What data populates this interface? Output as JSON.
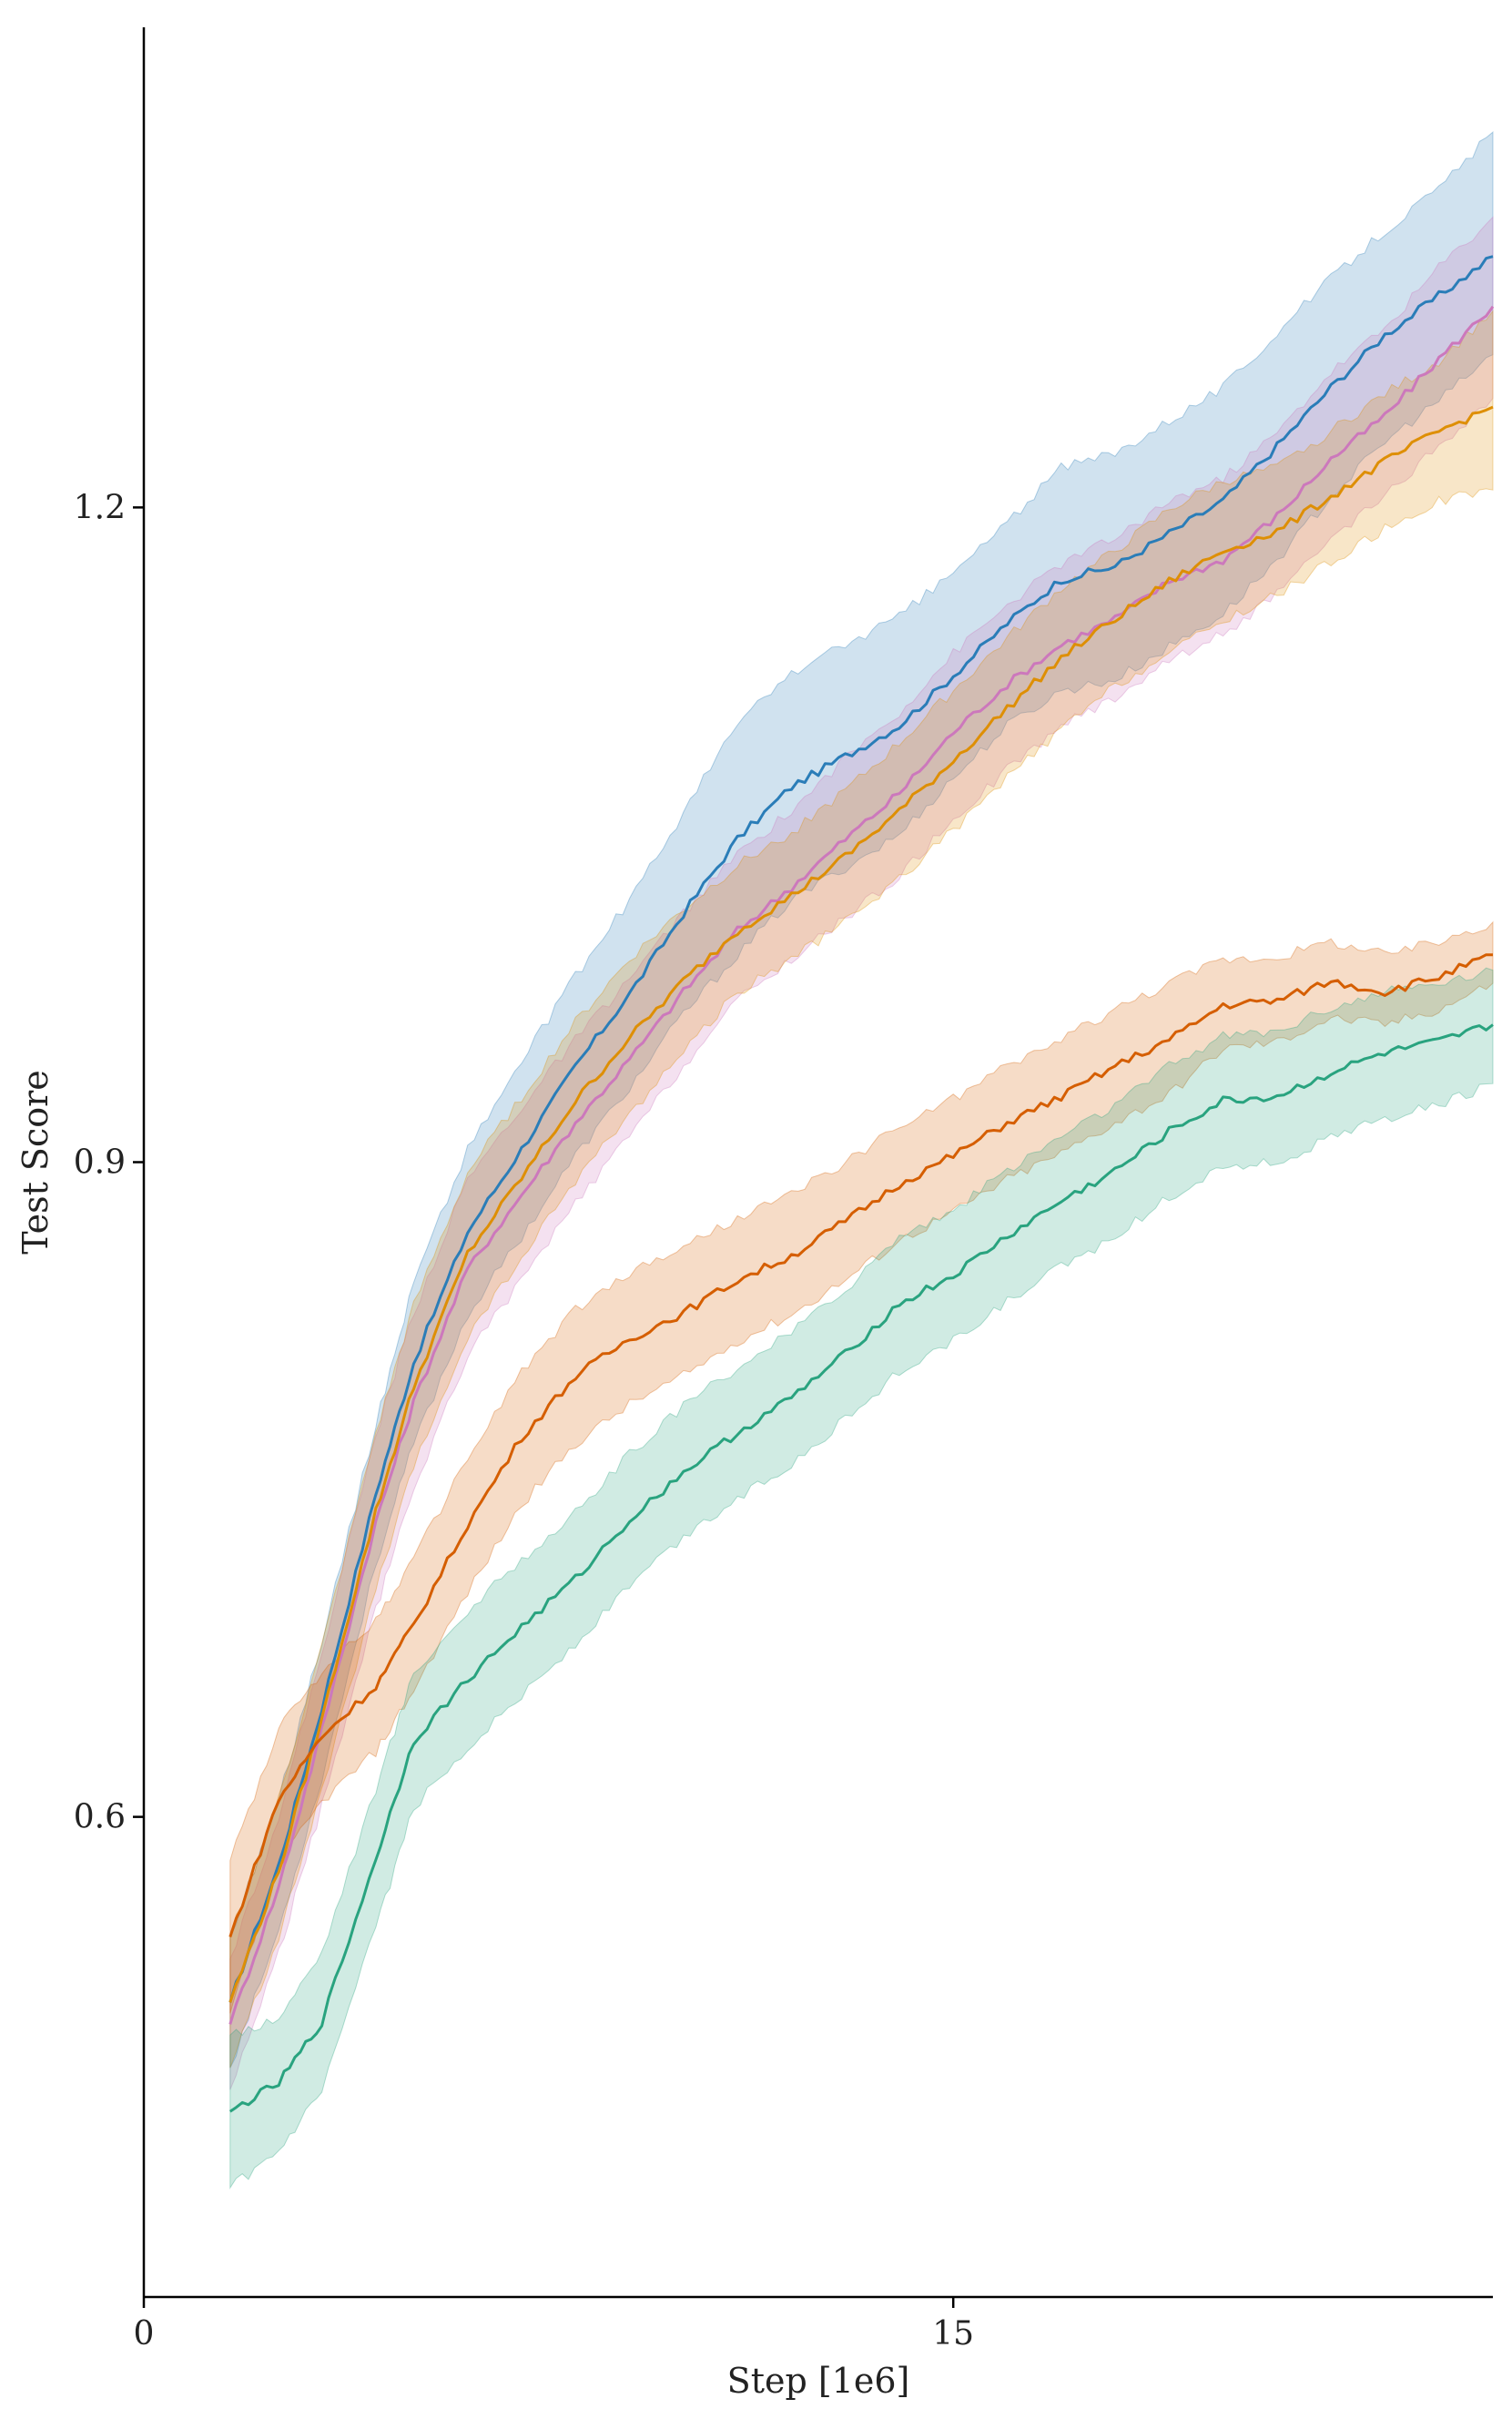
{
  "chart_data": {
    "type": "line",
    "title": "",
    "xlabel": "Step [1e6]",
    "ylabel": "Test Score",
    "xlim": [
      0,
      25
    ],
    "ylim": [
      0.38,
      1.42
    ],
    "xticks": [
      0,
      15
    ],
    "xtick_labels": [
      "0",
      "15"
    ],
    "yticks": [
      0.6,
      0.9,
      1.2
    ],
    "ytick_labels": [
      "0.6",
      "0.9",
      "1.2"
    ],
    "grid": false,
    "legend": "none",
    "x": [
      1.6,
      2.5,
      3.3,
      4.3,
      5.0,
      6.0,
      7.0,
      8.0,
      9.0,
      10.0,
      11.0,
      12.0,
      13.0,
      14.0,
      15.0,
      16.0,
      17.0,
      18.0,
      19.0,
      20.0,
      21.0,
      22.0,
      23.0,
      24.0,
      25.0
    ],
    "series": [
      {
        "color": "#2a7db8",
        "values": [
          0.515,
          0.578,
          0.65,
          0.748,
          0.808,
          0.868,
          0.906,
          0.944,
          0.977,
          1.014,
          1.048,
          1.072,
          1.086,
          1.1,
          1.123,
          1.147,
          1.167,
          1.173,
          1.188,
          1.203,
          1.228,
          1.255,
          1.279,
          1.297,
          1.315
        ],
        "lower": [
          0.485,
          0.548,
          0.618,
          0.716,
          0.771,
          0.83,
          0.866,
          0.903,
          0.934,
          0.968,
          0.995,
          1.02,
          1.035,
          1.05,
          1.076,
          1.1,
          1.116,
          1.121,
          1.136,
          1.151,
          1.176,
          1.205,
          1.23,
          1.249,
          1.27
        ],
        "upper": [
          0.545,
          0.608,
          0.681,
          0.78,
          0.845,
          0.906,
          0.946,
          0.985,
          1.02,
          1.06,
          1.101,
          1.124,
          1.137,
          1.15,
          1.17,
          1.193,
          1.218,
          1.225,
          1.24,
          1.255,
          1.28,
          1.305,
          1.327,
          1.346,
          1.372
        ]
      },
      {
        "color": "#cc78bc",
        "values": [
          0.505,
          0.568,
          0.64,
          0.735,
          0.79,
          0.851,
          0.885,
          0.918,
          0.947,
          0.978,
          1.006,
          1.026,
          1.048,
          1.069,
          1.097,
          1.119,
          1.137,
          1.149,
          1.166,
          1.176,
          1.196,
          1.222,
          1.242,
          1.268,
          1.292
        ],
        "lower": [
          0.475,
          0.538,
          0.605,
          0.695,
          0.75,
          0.812,
          0.846,
          0.881,
          0.912,
          0.944,
          0.974,
          0.993,
          1.012,
          1.031,
          1.057,
          1.08,
          1.1,
          1.113,
          1.13,
          1.142,
          1.16,
          1.185,
          1.205,
          1.228,
          1.25
        ],
        "upper": [
          0.535,
          0.6,
          0.675,
          0.775,
          0.831,
          0.892,
          0.925,
          0.956,
          0.984,
          1.014,
          1.041,
          1.061,
          1.085,
          1.106,
          1.133,
          1.155,
          1.174,
          1.186,
          1.203,
          1.213,
          1.234,
          1.262,
          1.282,
          1.31,
          1.333
        ]
      },
      {
        "color": "#de8f05",
        "values": [
          0.515,
          0.575,
          0.645,
          0.74,
          0.797,
          0.858,
          0.893,
          0.928,
          0.957,
          0.983,
          1.006,
          1.022,
          1.04,
          1.061,
          1.084,
          1.108,
          1.131,
          1.149,
          1.166,
          1.18,
          1.189,
          1.205,
          1.221,
          1.235,
          1.246
        ],
        "lower": [
          0.485,
          0.545,
          0.612,
          0.704,
          0.76,
          0.82,
          0.856,
          0.892,
          0.922,
          0.951,
          0.978,
          0.993,
          1.01,
          1.03,
          1.052,
          1.076,
          1.098,
          1.118,
          1.133,
          1.148,
          1.16,
          1.175,
          1.19,
          1.203,
          1.208
        ],
        "upper": [
          0.545,
          0.608,
          0.678,
          0.776,
          0.834,
          0.895,
          0.93,
          0.964,
          0.993,
          1.016,
          1.036,
          1.051,
          1.07,
          1.092,
          1.116,
          1.14,
          1.163,
          1.18,
          1.199,
          1.212,
          1.218,
          1.235,
          1.252,
          1.267,
          1.29
        ]
      },
      {
        "color": "#d55e00",
        "values": [
          0.545,
          0.608,
          0.637,
          0.66,
          0.688,
          0.734,
          0.774,
          0.802,
          0.819,
          0.831,
          0.846,
          0.857,
          0.873,
          0.89,
          0.903,
          0.918,
          0.93,
          0.944,
          0.956,
          0.972,
          0.974,
          0.983,
          0.978,
          0.985,
          0.995
        ],
        "lower": [
          0.51,
          0.578,
          0.607,
          0.63,
          0.658,
          0.703,
          0.743,
          0.771,
          0.789,
          0.802,
          0.818,
          0.83,
          0.846,
          0.864,
          0.877,
          0.892,
          0.904,
          0.918,
          0.931,
          0.952,
          0.955,
          0.966,
          0.963,
          0.97,
          0.982
        ],
        "upper": [
          0.58,
          0.64,
          0.667,
          0.69,
          0.718,
          0.764,
          0.804,
          0.832,
          0.849,
          0.861,
          0.874,
          0.885,
          0.9,
          0.916,
          0.929,
          0.944,
          0.956,
          0.97,
          0.982,
          0.993,
          0.994,
          1.001,
          0.995,
          1.001,
          1.01
        ]
      },
      {
        "color": "#29a37f",
        "values": [
          0.465,
          0.478,
          0.506,
          0.581,
          0.635,
          0.663,
          0.687,
          0.709,
          0.736,
          0.758,
          0.776,
          0.792,
          0.812,
          0.835,
          0.848,
          0.866,
          0.882,
          0.896,
          0.914,
          0.928,
          0.93,
          0.941,
          0.95,
          0.955,
          0.963
        ],
        "lower": [
          0.43,
          0.446,
          0.474,
          0.549,
          0.604,
          0.632,
          0.656,
          0.679,
          0.706,
          0.728,
          0.746,
          0.762,
          0.782,
          0.804,
          0.818,
          0.836,
          0.852,
          0.866,
          0.884,
          0.898,
          0.9,
          0.911,
          0.92,
          0.926,
          0.936
        ],
        "upper": [
          0.5,
          0.508,
          0.538,
          0.613,
          0.666,
          0.694,
          0.718,
          0.739,
          0.766,
          0.788,
          0.806,
          0.822,
          0.842,
          0.866,
          0.878,
          0.896,
          0.912,
          0.926,
          0.944,
          0.958,
          0.96,
          0.971,
          0.978,
          0.982,
          0.988
        ]
      }
    ]
  }
}
